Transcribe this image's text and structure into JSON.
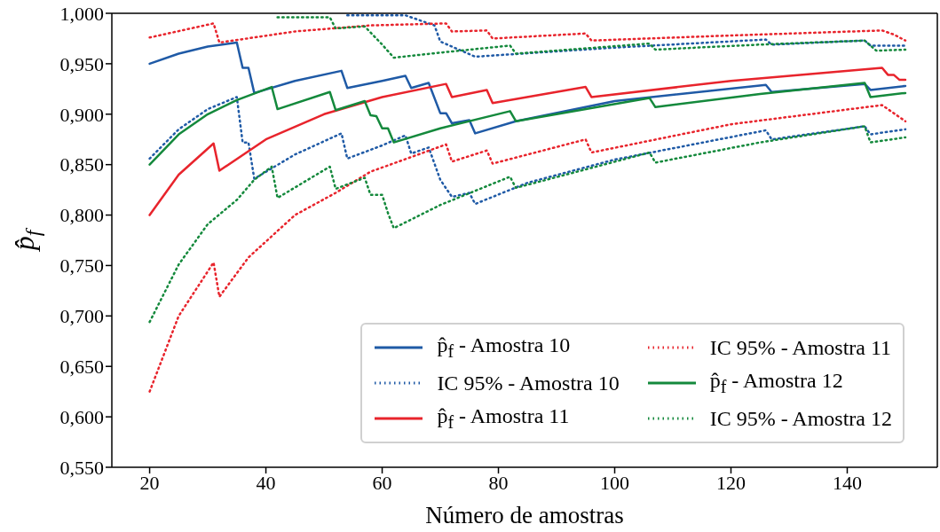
{
  "chart_data": {
    "type": "line",
    "xlabel": "Número de amostras",
    "ylabel": "p̂$_{f}$",
    "xlim": [
      13.5,
      155.5
    ],
    "xticks": [
      20,
      40,
      60,
      80,
      100,
      120,
      140
    ],
    "ylim": [
      0.55,
      1.0
    ],
    "yticks": [
      {
        "value": 0.55,
        "label": "0,550"
      },
      {
        "value": 0.6,
        "label": "0,600"
      },
      {
        "value": 0.65,
        "label": "0,650"
      },
      {
        "value": 0.7,
        "label": "0,700"
      },
      {
        "value": 0.75,
        "label": "0,750"
      },
      {
        "value": 0.8,
        "label": "0,800"
      },
      {
        "value": 0.85,
        "label": "0,850"
      },
      {
        "value": 0.9,
        "label": "0,900"
      },
      {
        "value": 0.95,
        "label": "0,950"
      },
      {
        "value": 1.0,
        "label": "1,000"
      }
    ],
    "legend": "bottom right",
    "marker": "none",
    "series": [
      {
        "name": "p̂$_{f}$ - Amostra 10",
        "color": "#1f5aa6",
        "line_style": "solid",
        "x": [
          20,
          25,
          30,
          35,
          36,
          37,
          38,
          45,
          53,
          54,
          60,
          64,
          65,
          68,
          70,
          71,
          72,
          75,
          76,
          83,
          100,
          126,
          127,
          143,
          144,
          150
        ],
        "values": [
          0.95,
          0.96,
          0.967,
          0.971,
          0.946,
          0.946,
          0.921,
          0.933,
          0.943,
          0.926,
          0.933,
          0.938,
          0.926,
          0.931,
          0.901,
          0.901,
          0.891,
          0.894,
          0.881,
          0.893,
          0.913,
          0.929,
          0.922,
          0.93,
          0.924,
          0.928
        ]
      },
      {
        "name": "IC 95% - Amostra 10",
        "color": "#1f5aa6",
        "line_style": "dotted",
        "x": [
          20,
          25,
          30,
          35,
          36,
          37,
          38,
          45,
          53,
          54,
          60,
          64,
          65,
          68,
          70,
          72,
          75,
          76,
          85,
          100,
          126,
          127,
          143,
          144,
          150
        ],
        "values": [
          0.856,
          0.885,
          0.905,
          0.917,
          0.872,
          0.872,
          0.836,
          0.86,
          0.881,
          0.856,
          0.869,
          0.879,
          0.861,
          0.867,
          0.835,
          0.818,
          0.822,
          0.811,
          0.832,
          0.855,
          0.884,
          0.875,
          0.888,
          0.88,
          0.885
        ]
      },
      {
        "color": "#1f5aa6",
        "line_style": "dotted",
        "x": [
          54,
          64,
          69,
          70,
          72,
          76,
          100,
          126,
          127,
          143,
          144,
          150
        ],
        "values": [
          0.998,
          0.998,
          0.988,
          0.972,
          0.967,
          0.957,
          0.966,
          0.974,
          0.969,
          0.973,
          0.968,
          0.968
        ]
      },
      {
        "name": "p̂$_{f}$ - Amostra 11",
        "color": "#e8242c",
        "line_style": "solid",
        "x": [
          20,
          25,
          31,
          32,
          40,
          50,
          60,
          71,
          72,
          78,
          79,
          95,
          96,
          120,
          146,
          147,
          148,
          149,
          150
        ],
        "values": [
          0.8,
          0.84,
          0.871,
          0.844,
          0.875,
          0.9,
          0.917,
          0.93,
          0.917,
          0.924,
          0.911,
          0.927,
          0.917,
          0.933,
          0.946,
          0.939,
          0.939,
          0.934,
          0.934
        ]
      },
      {
        "name": "IC 95% - Amostra 11",
        "color": "#e8242c",
        "line_style": "dotted",
        "x": [
          20,
          25,
          31,
          32,
          37,
          45,
          52,
          58,
          71,
          72,
          78,
          79,
          95,
          96,
          120,
          146,
          150
        ],
        "values": [
          0.625,
          0.7,
          0.753,
          0.719,
          0.758,
          0.8,
          0.822,
          0.843,
          0.87,
          0.853,
          0.864,
          0.851,
          0.875,
          0.862,
          0.89,
          0.909,
          0.893
        ]
      },
      {
        "color": "#e8242c",
        "line_style": "dotted",
        "x": [
          20,
          31,
          32,
          45,
          58,
          71,
          72,
          78,
          79,
          95,
          96,
          120,
          146,
          148,
          150
        ],
        "values": [
          0.976,
          0.99,
          0.971,
          0.982,
          0.988,
          0.99,
          0.982,
          0.983,
          0.975,
          0.98,
          0.973,
          0.978,
          0.983,
          0.979,
          0.973
        ]
      },
      {
        "name": "p̂$_{f}$ - Amostra 12",
        "color": "#14893c",
        "line_style": "solid",
        "x": [
          20,
          25,
          30,
          35,
          41,
          42,
          51,
          52,
          57,
          58,
          59,
          60,
          61,
          62,
          70,
          82,
          83,
          106,
          107,
          125,
          143,
          144,
          150
        ],
        "values": [
          0.85,
          0.88,
          0.9,
          0.914,
          0.927,
          0.905,
          0.922,
          0.904,
          0.913,
          0.899,
          0.898,
          0.886,
          0.886,
          0.872,
          0.886,
          0.903,
          0.893,
          0.916,
          0.907,
          0.92,
          0.931,
          0.917,
          0.921
        ]
      },
      {
        "name": "IC 95% - Amostra 12",
        "color": "#14893c",
        "line_style": "dotted",
        "x": [
          20,
          25,
          30,
          35,
          38,
          41,
          42,
          51,
          52,
          57,
          58,
          60,
          61,
          62,
          70,
          82,
          83,
          106,
          107,
          125,
          143,
          144,
          150
        ],
        "values": [
          0.694,
          0.751,
          0.791,
          0.815,
          0.835,
          0.848,
          0.817,
          0.848,
          0.826,
          0.837,
          0.82,
          0.82,
          0.802,
          0.787,
          0.81,
          0.838,
          0.827,
          0.862,
          0.852,
          0.872,
          0.888,
          0.872,
          0.877
        ]
      },
      {
        "color": "#14893c",
        "line_style": "dotted",
        "x": [
          42,
          51,
          52,
          57,
          60,
          62,
          70,
          82,
          83,
          106,
          107,
          125,
          143,
          145,
          150
        ],
        "values": [
          0.996,
          0.996,
          0.985,
          0.987,
          0.969,
          0.956,
          0.961,
          0.968,
          0.96,
          0.97,
          0.964,
          0.969,
          0.973,
          0.963,
          0.964
        ]
      }
    ]
  }
}
